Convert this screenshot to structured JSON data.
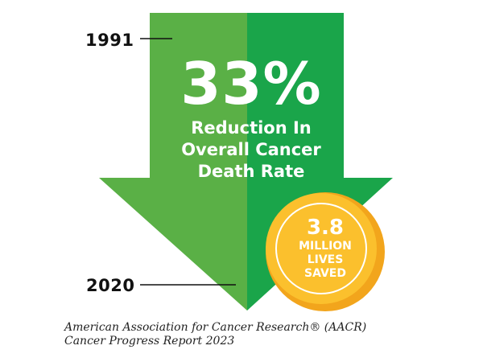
{
  "years": {
    "start": "1991",
    "end": "2020"
  },
  "stat": {
    "percent": "33%",
    "line1": "Reduction In",
    "line2": "Overall Cancer",
    "line3": "Death Rate"
  },
  "badge": {
    "number": "3.8",
    "line1": "MILLION",
    "line2": "LIVES",
    "line3": "SAVED"
  },
  "source": {
    "line1": "American Association for Cancer Research® (AACR)",
    "line2": "Cancer Progress Report 2023"
  },
  "colors": {
    "arrow_left": "#5ab046",
    "arrow_right": "#1aa54a",
    "badge_outer": "#f2a51c",
    "badge_inner": "#fbc02d",
    "text_dark": "#111111"
  }
}
